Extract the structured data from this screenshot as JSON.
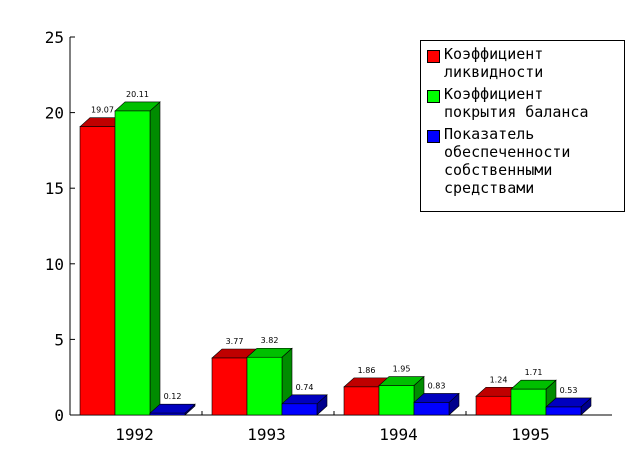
{
  "chart_data": {
    "type": "bar",
    "categories": [
      "1992",
      "1993",
      "1994",
      "1995"
    ],
    "series": [
      {
        "name": "Коэффициент\nликвидности",
        "values": [
          19.07,
          3.77,
          1.86,
          1.24
        ],
        "color": "#ff0000"
      },
      {
        "name": "Коэффициент\nпокрытия баланса",
        "values": [
          20.11,
          3.82,
          1.95,
          1.71
        ],
        "color": "#00ff00"
      },
      {
        "name": "Показатель\nобеспеченности\nсобственными\nсредствами",
        "values": [
          0.12,
          0.74,
          0.83,
          0.53
        ],
        "color": "#0000ff"
      }
    ],
    "ylim": [
      0,
      25
    ],
    "yticks": [
      0,
      5,
      10,
      15,
      20,
      25
    ],
    "ytick_labels": [
      "0",
      "5",
      "10",
      "15",
      "20",
      "25"
    ],
    "data_labels": [
      [
        "19.07",
        "3.77",
        "1.86",
        "1.24"
      ],
      [
        "20.11",
        "3.82",
        "1.95",
        "1.71"
      ],
      [
        "0.12",
        "0.74",
        "0.83",
        "0.53"
      ]
    ],
    "legend": "top-right",
    "grid": false,
    "style": "3d"
  }
}
